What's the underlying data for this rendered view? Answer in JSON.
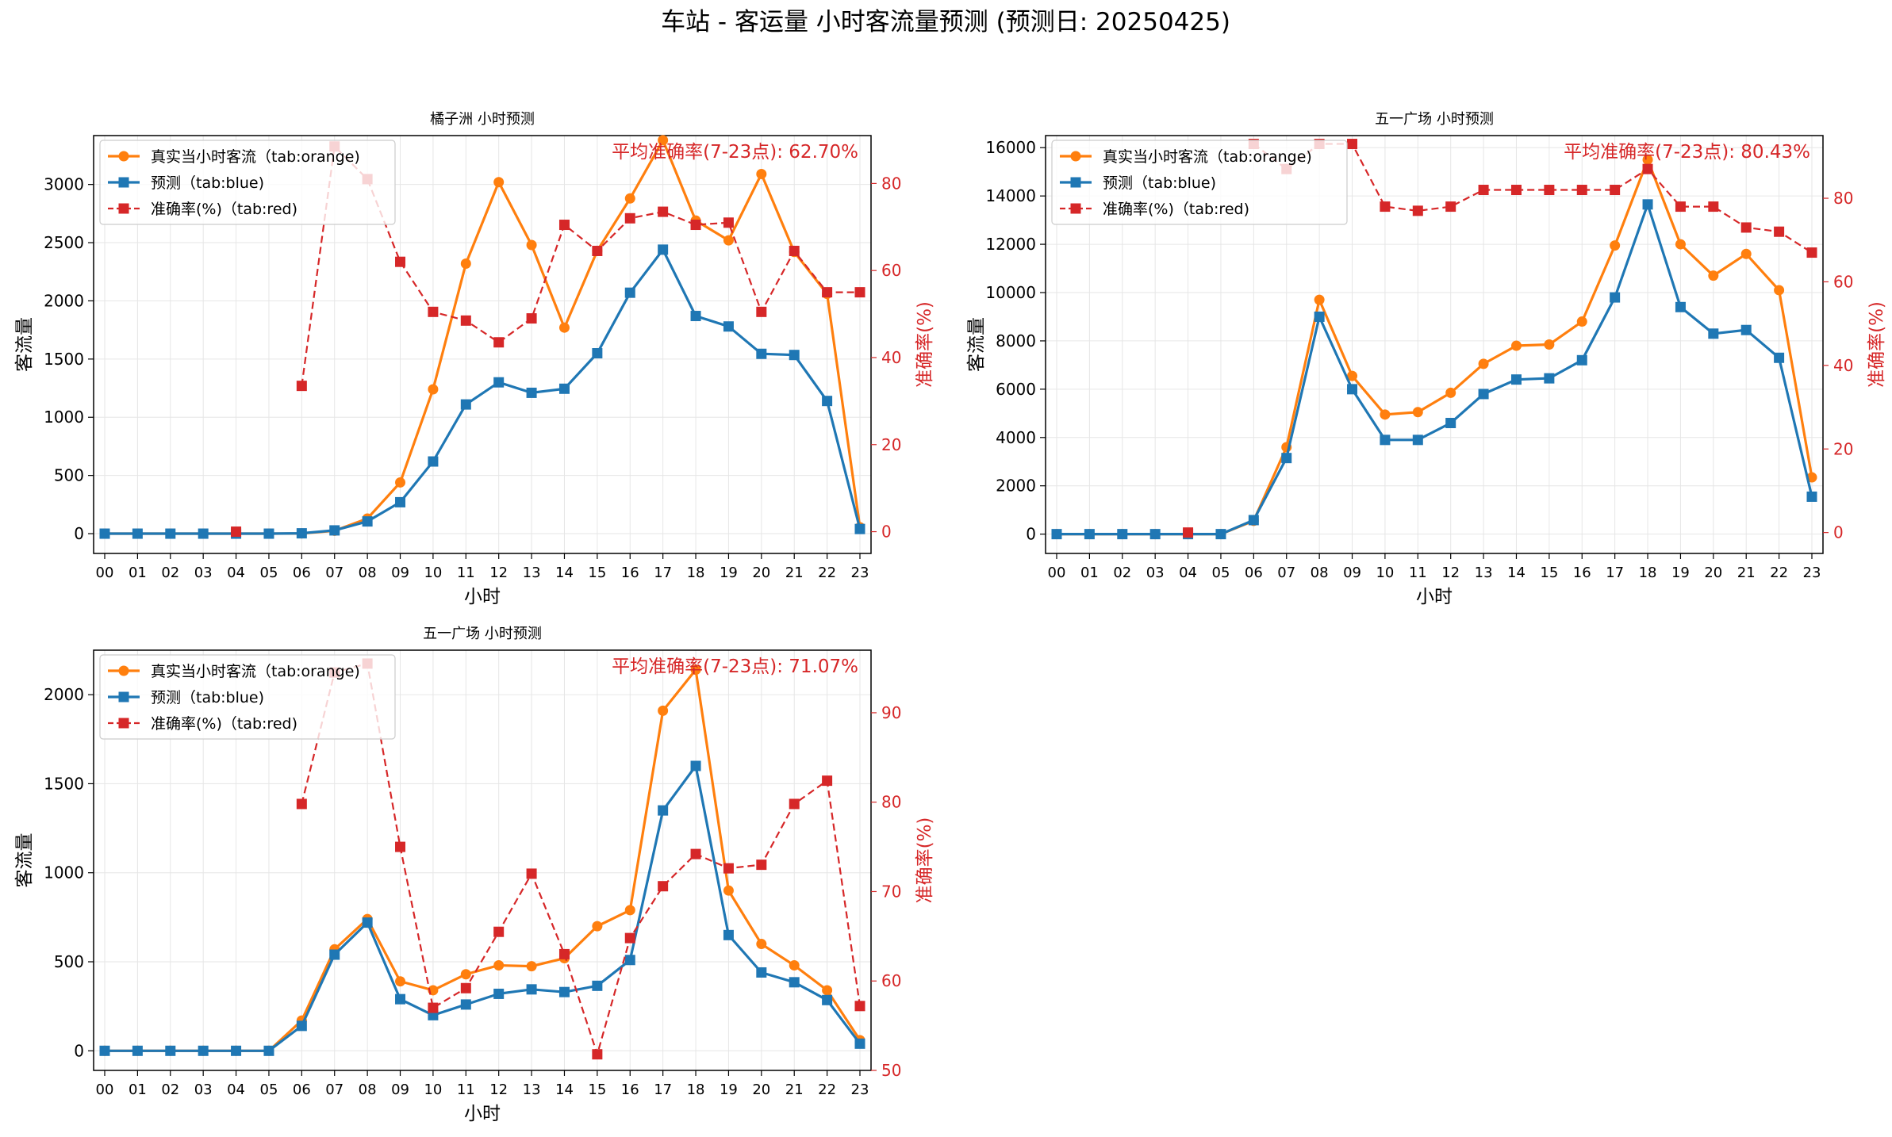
{
  "figure": {
    "suptitle": "车站 - 客运量 小时客流量预测 (预测日: 20250425)"
  },
  "colors": {
    "actual": "#ff7f0e",
    "predicted": "#1f77b4",
    "accuracy": "#d62728",
    "grid": "#e6e6e6",
    "axis": "#000000"
  },
  "chart_data": [
    {
      "type": "line",
      "title": "橘子洲 小时预测",
      "xlabel": "小时",
      "ylabel": "客流量",
      "ylabel_right": "准确率(%)",
      "accuracy_note": "平均准确率(7-23点): 62.70%",
      "grid": true,
      "legend_position": "top-left",
      "categories": [
        "00",
        "01",
        "02",
        "03",
        "04",
        "05",
        "06",
        "07",
        "08",
        "09",
        "10",
        "11",
        "12",
        "13",
        "14",
        "15",
        "16",
        "17",
        "18",
        "19",
        "20",
        "21",
        "22",
        "23"
      ],
      "ylim": [
        -170,
        3420
      ],
      "yticks": [
        0,
        500,
        1000,
        1500,
        2000,
        2500,
        3000
      ],
      "ylim_right": [
        -5,
        91
      ],
      "yticks_right": [
        0,
        20,
        40,
        60,
        80
      ],
      "series": [
        {
          "name": "真实当小时客流（tab:orange)",
          "axis": "left",
          "marker": "circle",
          "line": "solid",
          "values": [
            0,
            0,
            0,
            0,
            0,
            0,
            2,
            25,
            130,
            440,
            1240,
            2320,
            3020,
            2480,
            1770,
            2430,
            2880,
            3380,
            2690,
            2520,
            3090,
            2420,
            2060,
            55
          ]
        },
        {
          "name": "预测（tab:blue)",
          "axis": "left",
          "marker": "square",
          "line": "solid",
          "values": [
            0,
            0,
            0,
            0,
            0,
            0,
            3,
            28,
            105,
            270,
            620,
            1110,
            1300,
            1210,
            1245,
            1550,
            2070,
            2440,
            1870,
            1780,
            1545,
            1535,
            1140,
            40
          ]
        },
        {
          "name": "准确率(%)（tab:red)",
          "axis": "right",
          "marker": "square",
          "line": "dashed",
          "values": [
            null,
            null,
            null,
            null,
            0,
            null,
            33.5,
            88.5,
            81,
            62,
            50.5,
            48.5,
            43.5,
            49,
            70.5,
            64.5,
            72,
            73.5,
            70.5,
            71,
            50.5,
            64.5,
            55,
            55
          ]
        }
      ]
    },
    {
      "type": "line",
      "title": "五一广场 小时预测",
      "xlabel": "小时",
      "ylabel": "客流量",
      "ylabel_right": "准确率(%)",
      "accuracy_note": "平均准确率(7-23点): 80.43%",
      "grid": true,
      "legend_position": "top-left",
      "categories": [
        "00",
        "01",
        "02",
        "03",
        "04",
        "05",
        "06",
        "07",
        "08",
        "09",
        "10",
        "11",
        "12",
        "13",
        "14",
        "15",
        "16",
        "17",
        "18",
        "19",
        "20",
        "21",
        "22",
        "23"
      ],
      "ylim": [
        -800,
        16500
      ],
      "yticks": [
        0,
        2000,
        4000,
        6000,
        8000,
        10000,
        12000,
        14000,
        16000
      ],
      "ylim_right": [
        -5,
        95
      ],
      "yticks_right": [
        0,
        20,
        40,
        60,
        80
      ],
      "series": [
        {
          "name": "真实当小时客流（tab:orange)",
          "axis": "left",
          "marker": "circle",
          "line": "solid",
          "values": [
            0,
            0,
            0,
            0,
            0,
            0,
            550,
            3600,
            9700,
            6550,
            4950,
            5050,
            5850,
            7050,
            7800,
            7850,
            8800,
            11950,
            15500,
            12000,
            10700,
            11600,
            10100,
            2350
          ]
        },
        {
          "name": "预测（tab:blue)",
          "axis": "left",
          "marker": "square",
          "line": "solid",
          "values": [
            0,
            0,
            0,
            0,
            0,
            0,
            580,
            3150,
            9000,
            6000,
            3900,
            3900,
            4600,
            5800,
            6400,
            6450,
            7200,
            9800,
            13650,
            9400,
            8300,
            8450,
            7300,
            1550
          ]
        },
        {
          "name": "准确率(%)（tab:red)",
          "axis": "right",
          "marker": "square",
          "line": "dashed",
          "values": [
            null,
            null,
            null,
            null,
            0,
            null,
            93,
            87,
            93,
            93,
            78,
            77,
            78,
            82,
            82,
            82,
            82,
            82,
            87,
            78,
            78,
            73,
            72,
            67
          ]
        }
      ]
    },
    {
      "type": "line",
      "title": "五一广场 小时预测",
      "xlabel": "小时",
      "ylabel": "客流量",
      "ylabel_right": "准确率(%)",
      "accuracy_note": "平均准确率(7-23点): 71.07%",
      "grid": true,
      "legend_position": "top-left",
      "categories": [
        "00",
        "01",
        "02",
        "03",
        "04",
        "05",
        "06",
        "07",
        "08",
        "09",
        "10",
        "11",
        "12",
        "13",
        "14",
        "15",
        "16",
        "17",
        "18",
        "19",
        "20",
        "21",
        "22",
        "23"
      ],
      "ylim": [
        -110,
        2250
      ],
      "yticks": [
        0,
        500,
        1000,
        1500,
        2000
      ],
      "ylim_right": [
        50,
        97
      ],
      "yticks_right": [
        50,
        60,
        70,
        80,
        90
      ],
      "series": [
        {
          "name": "真实当小时客流（tab:orange)",
          "axis": "left",
          "marker": "circle",
          "line": "solid",
          "values": [
            0,
            0,
            0,
            0,
            0,
            0,
            170,
            570,
            740,
            390,
            340,
            430,
            480,
            475,
            520,
            700,
            790,
            1910,
            2140,
            900,
            600,
            480,
            340,
            60
          ]
        },
        {
          "name": "预测（tab:blue)",
          "axis": "left",
          "marker": "square",
          "line": "solid",
          "values": [
            0,
            0,
            0,
            0,
            0,
            0,
            140,
            540,
            720,
            290,
            200,
            260,
            320,
            345,
            330,
            365,
            510,
            1350,
            1600,
            650,
            440,
            385,
            285,
            40
          ]
        },
        {
          "name": "准确率(%)（tab:red)",
          "axis": "right",
          "marker": "square",
          "line": "dashed",
          "values": [
            null,
            null,
            null,
            null,
            null,
            null,
            79.8,
            94.5,
            95.5,
            75,
            57,
            59.2,
            65.5,
            72,
            63,
            51.8,
            64.8,
            70.6,
            74.2,
            72.6,
            73,
            79.8,
            82.4,
            57.2
          ]
        }
      ]
    }
  ]
}
